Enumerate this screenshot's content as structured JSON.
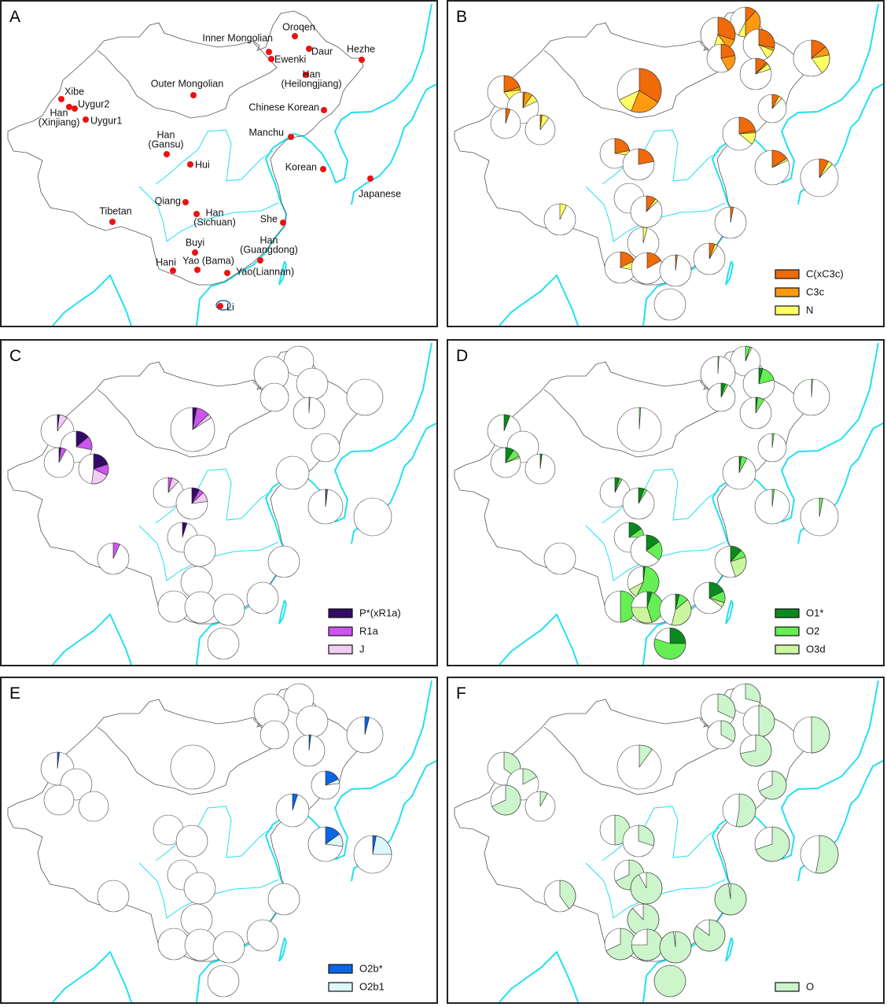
{
  "panel_a": {
    "letter": "A",
    "sites": [
      {
        "lines": [
          "Oroqen"
        ]
      },
      {
        "lines": [
          "Inner Mongolian"
        ]
      },
      {
        "lines": [
          "Daur"
        ]
      },
      {
        "lines": [
          "Ewenki"
        ]
      },
      {
        "lines": [
          "Hezhe"
        ]
      },
      {
        "lines": [
          "Han",
          "(Heilongjiang)"
        ]
      },
      {
        "lines": [
          "Outer Mongolian"
        ]
      },
      {
        "lines": [
          "Xibe"
        ]
      },
      {
        "lines": [
          "Uygur2"
        ]
      },
      {
        "lines": [
          "Han",
          "(Xinjiang)"
        ]
      },
      {
        "lines": [
          "Uygur1"
        ]
      },
      {
        "lines": [
          "Chinese Korean"
        ]
      },
      {
        "lines": [
          "Han",
          "(Gansu)"
        ]
      },
      {
        "lines": [
          "Manchu"
        ]
      },
      {
        "lines": [
          "Hui"
        ]
      },
      {
        "lines": [
          "Korean"
        ]
      },
      {
        "lines": [
          "Japanese"
        ]
      },
      {
        "lines": [
          "Qiang"
        ]
      },
      {
        "lines": [
          "Tibetan"
        ]
      },
      {
        "lines": [
          "Han",
          "(Sichuan)"
        ]
      },
      {
        "lines": [
          "She"
        ]
      },
      {
        "lines": [
          "Buyi"
        ]
      },
      {
        "lines": [
          "Han",
          "(Guangdong)"
        ]
      },
      {
        "lines": [
          "Hani"
        ]
      },
      {
        "lines": [
          "Yao (Bama)"
        ]
      },
      {
        "lines": [
          "Yao(Liannan)"
        ]
      },
      {
        "lines": [
          "Li"
        ]
      }
    ],
    "dot_color": "#ee1111"
  },
  "chart_data": [
    {
      "type": "pie-map",
      "letter": "B",
      "legend": [
        {
          "label": "C(xC3c)",
          "color": "#f06a0a"
        },
        {
          "label": "C3c",
          "color": "#ff9a10"
        },
        {
          "label": "N",
          "color": "#ffff66"
        }
      ],
      "values": [
        [
          0.12,
          0.38,
          0.08
        ],
        [
          0.3,
          0.1,
          0.15
        ],
        [
          0.28,
          0.03,
          0.1
        ],
        [
          0.22,
          0.2,
          0
        ],
        [
          0.14,
          0.08,
          0.18
        ],
        [
          0.12,
          0.02,
          0.06
        ],
        [
          0.34,
          0.22,
          0.12
        ],
        [
          0.2,
          0.03,
          0.17
        ],
        [
          0.02,
          0.08,
          0.08
        ],
        [
          0.05,
          0,
          0
        ],
        [
          0.02,
          0,
          0.08
        ],
        [
          0.08,
          0,
          0.04
        ],
        [
          0.22,
          0,
          0.05
        ],
        [
          0.22,
          0.02,
          0.12
        ],
        [
          0.22,
          0,
          0
        ],
        [
          0.16,
          0,
          0.02
        ],
        [
          0.08,
          0,
          0.04
        ],
        [
          0,
          0,
          0
        ],
        [
          0,
          0,
          0.07
        ],
        [
          0.1,
          0,
          0.03
        ],
        [
          0.03,
          0,
          0
        ],
        [
          0,
          0,
          0.04
        ],
        [
          0.06,
          0,
          0.03
        ],
        [
          0.18,
          0,
          0.1
        ],
        [
          0.17,
          0,
          0
        ],
        [
          0.02,
          0,
          0
        ],
        [
          0,
          0,
          0
        ]
      ]
    },
    {
      "type": "pie-map",
      "letter": "C",
      "legend": [
        {
          "label": "P*(xR1a)",
          "color": "#330a66"
        },
        {
          "label": "R1a",
          "color": "#cc55ee"
        },
        {
          "label": "J",
          "color": "#f2ccf5"
        }
      ],
      "values": [
        [
          0,
          0,
          0
        ],
        [
          0,
          0,
          0
        ],
        [
          0,
          0,
          0
        ],
        [
          0,
          0,
          0
        ],
        [
          0,
          0,
          0
        ],
        [
          0,
          0,
          0.01
        ],
        [
          0.03,
          0.1,
          0.03
        ],
        [
          0.02,
          0,
          0.08
        ],
        [
          0.14,
          0.14,
          0
        ],
        [
          0.02,
          0.06,
          0
        ],
        [
          0.2,
          0.12,
          0.2
        ],
        [
          0,
          0,
          0
        ],
        [
          0,
          0.04,
          0.08
        ],
        [
          0,
          0,
          0
        ],
        [
          0.08,
          0.05,
          0.1
        ],
        [
          0.01,
          0,
          0.01
        ],
        [
          0,
          0,
          0
        ],
        [
          0.05,
          0,
          0
        ],
        [
          0,
          0.07,
          0
        ],
        [
          0,
          0,
          0
        ],
        [
          0,
          0,
          0
        ],
        [
          0,
          0,
          0
        ],
        [
          0,
          0,
          0
        ],
        [
          0,
          0,
          0
        ],
        [
          0,
          0,
          0
        ],
        [
          0,
          0,
          0
        ],
        [
          0,
          0,
          0
        ]
      ]
    },
    {
      "type": "pie-map",
      "letter": "D",
      "legend": [
        {
          "label": "O1*",
          "color": "#0a8a1e"
        },
        {
          "label": "O2",
          "color": "#66ee55"
        },
        {
          "label": "O3d",
          "color": "#ccf5a0"
        }
      ],
      "values": [
        [
          0,
          0.05,
          0.02
        ],
        [
          0,
          0.01,
          0
        ],
        [
          0.04,
          0.17,
          0
        ],
        [
          0.05,
          0.03,
          0
        ],
        [
          0,
          0.01,
          0
        ],
        [
          0.02,
          0.07,
          0
        ],
        [
          0,
          0.01,
          0
        ],
        [
          0.06,
          0,
          0
        ],
        [
          0,
          0,
          0
        ],
        [
          0.09,
          0.09,
          0.02
        ],
        [
          0.02,
          0,
          0
        ],
        [
          0,
          0.02,
          0
        ],
        [
          0.05,
          0.03,
          0
        ],
        [
          0.02,
          0.06,
          0
        ],
        [
          0.06,
          0.03,
          0
        ],
        [
          0,
          0.02,
          0
        ],
        [
          0,
          0.03,
          0
        ],
        [
          0.15,
          0.1,
          0
        ],
        [
          0,
          0,
          0
        ],
        [
          0.15,
          0.2,
          0
        ],
        [
          0.12,
          0.08,
          0.25
        ],
        [
          0.02,
          0.55,
          0.1
        ],
        [
          0.18,
          0.12,
          0.05
        ],
        [
          0,
          0.5,
          0
        ],
        [
          0.05,
          0.4,
          0.3
        ],
        [
          0.04,
          0.1,
          0.4
        ],
        [
          0.25,
          0.55,
          0
        ]
      ]
    },
    {
      "type": "pie-map",
      "letter": "E",
      "legend": [
        {
          "label": "O2b*",
          "color": "#0a66e6"
        },
        {
          "label": "O2b1",
          "color": "#ddf8fc"
        }
      ],
      "values": [
        [
          0,
          0
        ],
        [
          0,
          0
        ],
        [
          0,
          0
        ],
        [
          0,
          0
        ],
        [
          0.04,
          0
        ],
        [
          0.02,
          0
        ],
        [
          0,
          0
        ],
        [
          0.02,
          0
        ],
        [
          0,
          0
        ],
        [
          0,
          0
        ],
        [
          0,
          0
        ],
        [
          0.18,
          0.05
        ],
        [
          0,
          0
        ],
        [
          0.05,
          0
        ],
        [
          0,
          0
        ],
        [
          0.15,
          0.12
        ],
        [
          0.03,
          0.22
        ],
        [
          0,
          0
        ],
        [
          0,
          0
        ],
        [
          0,
          0
        ],
        [
          0,
          0
        ],
        [
          0,
          0
        ],
        [
          0,
          0
        ],
        [
          0,
          0
        ],
        [
          0,
          0
        ],
        [
          0,
          0
        ],
        [
          0,
          0
        ]
      ]
    },
    {
      "type": "pie-map",
      "letter": "F",
      "legend": [
        {
          "label": "O",
          "color": "#ccf5cc"
        }
      ],
      "values": [
        [
          0.29
        ],
        [
          0.32
        ],
        [
          0.5
        ],
        [
          0.33
        ],
        [
          0.5
        ],
        [
          0.72
        ],
        [
          0.1
        ],
        [
          0.35
        ],
        [
          0.17
        ],
        [
          0.68
        ],
        [
          0.08
        ],
        [
          0.68
        ],
        [
          0.5
        ],
        [
          0.53
        ],
        [
          0.3
        ],
        [
          0.7
        ],
        [
          0.53
        ],
        [
          0.68
        ],
        [
          0.4
        ],
        [
          0.92
        ],
        [
          0.98
        ],
        [
          0.88
        ],
        [
          0.85
        ],
        [
          0.68
        ],
        [
          0.75
        ],
        [
          0.98
        ],
        [
          1.0
        ]
      ]
    }
  ]
}
